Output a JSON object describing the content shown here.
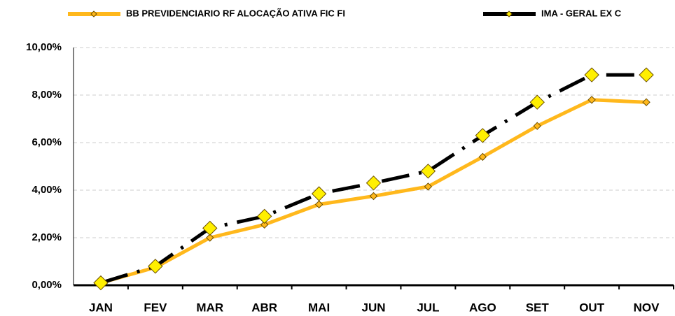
{
  "chart_data": {
    "type": "line",
    "categories": [
      "JAN",
      "FEV",
      "MAR",
      "ABR",
      "MAI",
      "JUN",
      "JUL",
      "AGO",
      "SET",
      "OUT",
      "NOV"
    ],
    "series": [
      {
        "name": "BB PREVIDENCIARIO RF ALOCAÇÃO ATIVA FIC FI",
        "color": "#FFB81C",
        "marker_color": "#FFB81C",
        "values": [
          0.1,
          0.75,
          2.0,
          2.55,
          3.4,
          3.75,
          4.15,
          5.4,
          6.7,
          7.8,
          7.7
        ]
      },
      {
        "name": "IMA - GERAL EX C",
        "color": "#000000",
        "marker_color": "#FFEF00",
        "values": [
          0.1,
          0.8,
          2.4,
          2.9,
          3.85,
          4.3,
          4.8,
          6.3,
          7.7,
          8.85,
          8.85
        ]
      }
    ],
    "ylim": [
      0,
      10
    ],
    "yticks": [
      {
        "value": 0,
        "label": "0,00%"
      },
      {
        "value": 2,
        "label": "2,00%"
      },
      {
        "value": 4,
        "label": "4,00%"
      },
      {
        "value": 6,
        "label": "6,00%"
      },
      {
        "value": 8,
        "label": "8,00%"
      },
      {
        "value": 10,
        "label": "10,00%"
      }
    ],
    "grid": true,
    "legend": "top"
  }
}
